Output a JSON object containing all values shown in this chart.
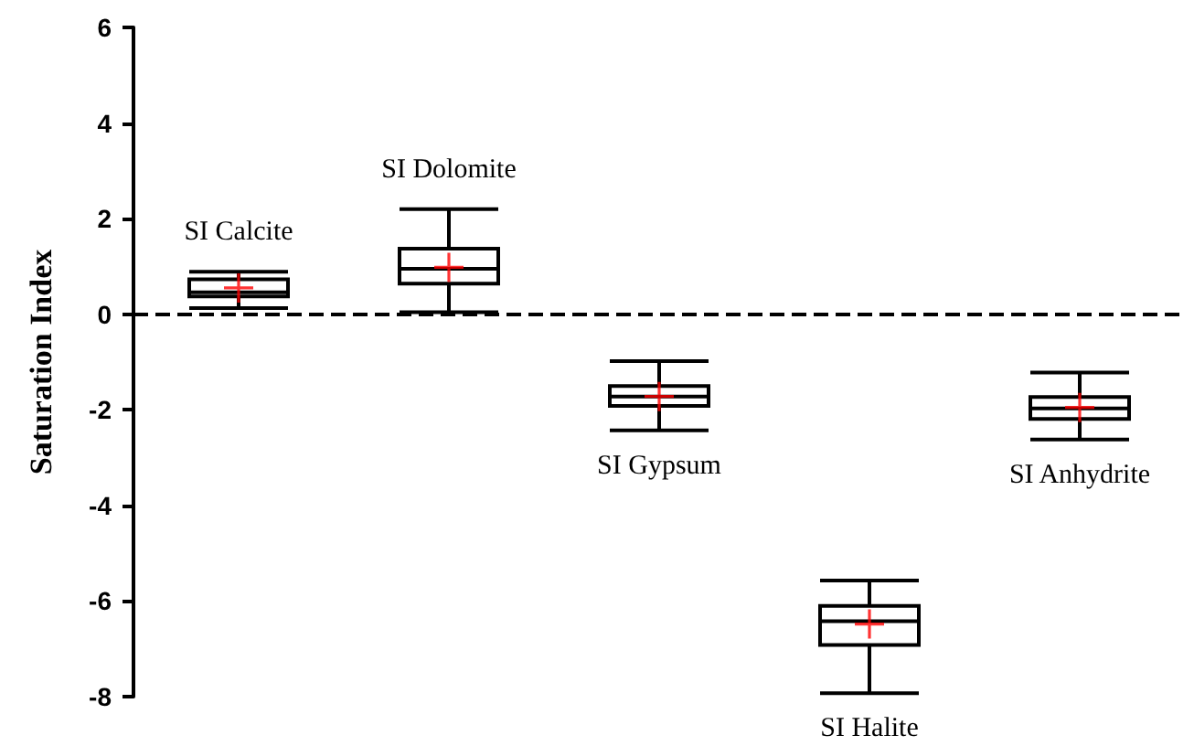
{
  "chart_data": {
    "type": "box",
    "ylabel": "Saturation Index",
    "categories": [
      "SI Calcite",
      "SI Dolomite",
      "SI Gypsum",
      "SI Halite",
      "SI Anhydrite"
    ],
    "boxes": [
      {
        "low": 0.13,
        "q1": 0.37,
        "median": 0.46,
        "q3": 0.73,
        "high": 0.89,
        "mean": 0.55
      },
      {
        "low": 0.04,
        "q1": 0.64,
        "median": 0.95,
        "q3": 1.37,
        "high": 2.2,
        "mean": 0.98
      },
      {
        "low": -2.43,
        "q1": -1.92,
        "median": -1.72,
        "q3": -1.5,
        "high": -0.98,
        "mean": -1.72
      },
      {
        "low": -7.93,
        "q1": -6.92,
        "median": -6.42,
        "q3": -6.1,
        "high": -5.57,
        "mean": -6.48
      },
      {
        "low": -2.62,
        "q1": -2.19,
        "median": -1.97,
        "q3": -1.73,
        "high": -1.22,
        "mean": -1.95
      }
    ],
    "ylim": [
      -8,
      6
    ],
    "yticks": [
      -8,
      -6,
      -4,
      -2,
      0,
      2,
      4,
      6
    ],
    "ref_lines": [
      {
        "axis": "y",
        "value": 0,
        "color": "#000000",
        "line_style": "dashed"
      }
    ],
    "marker": "cross"
  }
}
